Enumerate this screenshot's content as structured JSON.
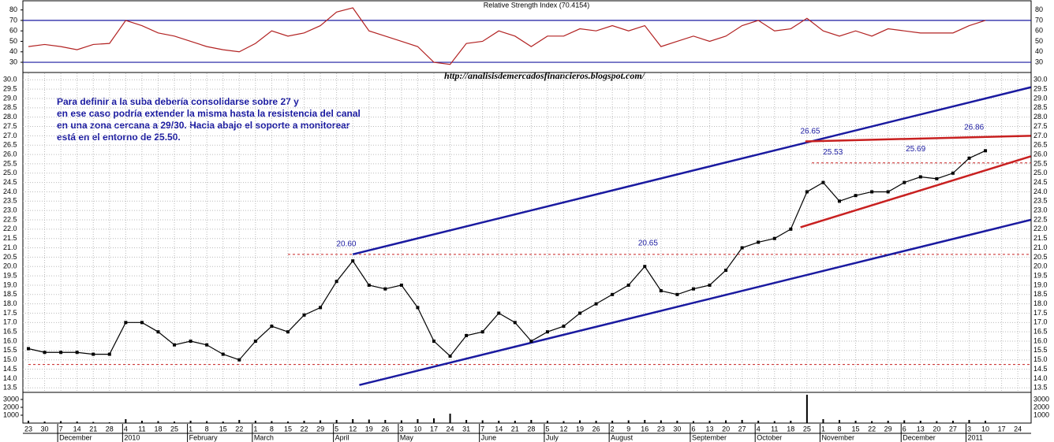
{
  "chart_data": {
    "type": "line",
    "rsi_title": "Relative Strength Index (70.4154)",
    "url": "http://analisisdemercadosfinancieros.blogspot.com/",
    "note": [
      "Para definir a la suba debería consolidarse sobre 27 y",
      "en ese caso podría extender la misma hasta la resistencia del canal",
      "en una zona cercana a 29/30. Hacia abajo el soporte a monitorear",
      "está en el entorno de 25.50."
    ],
    "categories": [
      "23",
      "30",
      "7",
      "14",
      "21",
      "28",
      "4",
      "11",
      "18",
      "25",
      "1",
      "8",
      "15",
      "22",
      "1",
      "8",
      "15",
      "22",
      "29",
      "5",
      "12",
      "19",
      "26",
      "3",
      "10",
      "17",
      "24",
      "31",
      "7",
      "14",
      "21",
      "28",
      "5",
      "12",
      "19",
      "26",
      "2",
      "9",
      "16",
      "23",
      "30",
      "6",
      "13",
      "20",
      "27",
      "4",
      "11",
      "18",
      "25",
      "1",
      "8",
      "15",
      "22",
      "29",
      "6",
      "13",
      "20",
      "27",
      "3",
      "10",
      "17",
      "24"
    ],
    "months": [
      "December",
      "2010",
      "February",
      "March",
      "April",
      "May",
      "June",
      "July",
      "August",
      "September",
      "October",
      "November",
      "December",
      "2011"
    ],
    "series": [
      {
        "name": "Price",
        "color": "#000000",
        "values": [
          15.6,
          15.4,
          15.4,
          15.4,
          15.3,
          15.3,
          17.0,
          17.0,
          16.5,
          15.8,
          16.0,
          15.8,
          15.3,
          15.0,
          16.0,
          16.8,
          16.5,
          17.4,
          17.8,
          19.2,
          20.3,
          19.0,
          18.8,
          19.0,
          17.8,
          16.0,
          15.2,
          16.3,
          16.5,
          17.5,
          17.0,
          16.0,
          16.5,
          16.8,
          17.5,
          18.0,
          18.5,
          19.0,
          20.0,
          18.7,
          18.5,
          18.8,
          19.0,
          19.8,
          21.0,
          21.3,
          21.5,
          22.0,
          24.0,
          24.5,
          23.5,
          23.8,
          24.0,
          24.0,
          24.5,
          24.8,
          24.7,
          25.0,
          25.8,
          26.2,
          null,
          null
        ]
      },
      {
        "name": "RSI",
        "color": "#b22222",
        "values": [
          45,
          47,
          45,
          42,
          47,
          48,
          70,
          65,
          58,
          55,
          50,
          45,
          42,
          40,
          48,
          60,
          55,
          58,
          65,
          78,
          82,
          60,
          55,
          50,
          45,
          30,
          28,
          48,
          50,
          60,
          55,
          45,
          55,
          55,
          62,
          60,
          65,
          60,
          65,
          45,
          50,
          55,
          50,
          55,
          65,
          70,
          60,
          62,
          72,
          60,
          55,
          60,
          55,
          62,
          60,
          58,
          58,
          58,
          65,
          70,
          null,
          null
        ]
      },
      {
        "name": "Volume",
        "color": "#000000",
        "values": [
          300,
          200,
          250,
          200,
          150,
          100,
          500,
          300,
          250,
          200,
          300,
          250,
          200,
          400,
          300,
          250,
          200,
          300,
          350,
          400,
          500,
          450,
          400,
          350,
          500,
          600,
          1200,
          400,
          350,
          300,
          300,
          400,
          300,
          250,
          350,
          300,
          300,
          350,
          400,
          350,
          300,
          250,
          300,
          350,
          400,
          300,
          250,
          300,
          3600,
          500,
          400,
          300,
          250,
          300,
          350,
          300,
          250,
          300,
          400,
          300,
          null,
          null
        ]
      }
    ],
    "ylim": [
      13.3,
      30.35
    ],
    "yticks": [
      13.5,
      {
        "value": 14,
        "label": "14.0"
      },
      14.5,
      {
        "value": 15,
        "label": "15.0"
      },
      15.5,
      {
        "value": 16,
        "label": "16.0"
      },
      16.5,
      {
        "value": 17,
        "label": "17.0"
      },
      17.5,
      {
        "value": 18,
        "label": "18.0"
      },
      18.5,
      {
        "value": 19,
        "label": "19.0"
      },
      19.5,
      {
        "value": 20,
        "label": "20.0"
      },
      20.5,
      {
        "value": 21,
        "label": "21.0"
      },
      21.5,
      {
        "value": 22,
        "label": "22.0"
      },
      22.5,
      {
        "value": 23,
        "label": "23.0"
      },
      23.5,
      {
        "value": 24,
        "label": "24.0"
      },
      24.5,
      {
        "value": 25,
        "label": "25.0"
      },
      25.5,
      {
        "value": 26,
        "label": "26.0"
      },
      26.5,
      {
        "value": 27,
        "label": "27.0"
      },
      27.5,
      {
        "value": 28,
        "label": "28.0"
      },
      28.5,
      {
        "value": 29,
        "label": "29.0"
      },
      29.5,
      {
        "value": 30,
        "label": "30.0"
      }
    ],
    "rsi_ylim": [
      21,
      88
    ],
    "rsi_yticks": [
      30,
      40,
      50,
      60,
      70,
      80
    ],
    "rsi_levels": [
      70,
      30
    ],
    "vol_ylim": [
      0,
      3800
    ],
    "vol_yticks": [
      1000,
      2000,
      3000
    ],
    "grid": true,
    "support_lines": [
      {
        "value": 14.75,
        "start": 0
      },
      {
        "value": 20.65,
        "start": 16
      },
      {
        "value": 25.55,
        "start": 48.3
      }
    ],
    "trend_lines": [
      {
        "color": "#1a1aa0",
        "points": [
          [
            20,
            20.65
          ],
          [
            61.8,
            29.6
          ]
        ]
      },
      {
        "color": "#1a1aa0",
        "points": [
          [
            20.4,
            13.65
          ],
          [
            61.8,
            22.5
          ]
        ]
      },
      {
        "color": "#c82020",
        "points": [
          [
            47.6,
            22.1
          ],
          [
            61.8,
            25.9
          ]
        ]
      },
      {
        "color": "#c82020",
        "points": [
          [
            47.9,
            26.7
          ],
          [
            61.8,
            27.0
          ]
        ]
      }
    ],
    "peaks": [
      {
        "label": "20.60",
        "value": 20.6,
        "index": 19.6
      },
      {
        "label": "20.65",
        "value": 20.65,
        "index": 38.2
      },
      {
        "label": "26.65",
        "value": 26.65,
        "index": 48.2
      },
      {
        "label": "25.53",
        "value": 25.53,
        "index": 49.6
      },
      {
        "label": "25.69",
        "value": 25.69,
        "index": 54.7
      },
      {
        "label": "26.86",
        "value": 26.86,
        "index": 58.3
      }
    ]
  }
}
